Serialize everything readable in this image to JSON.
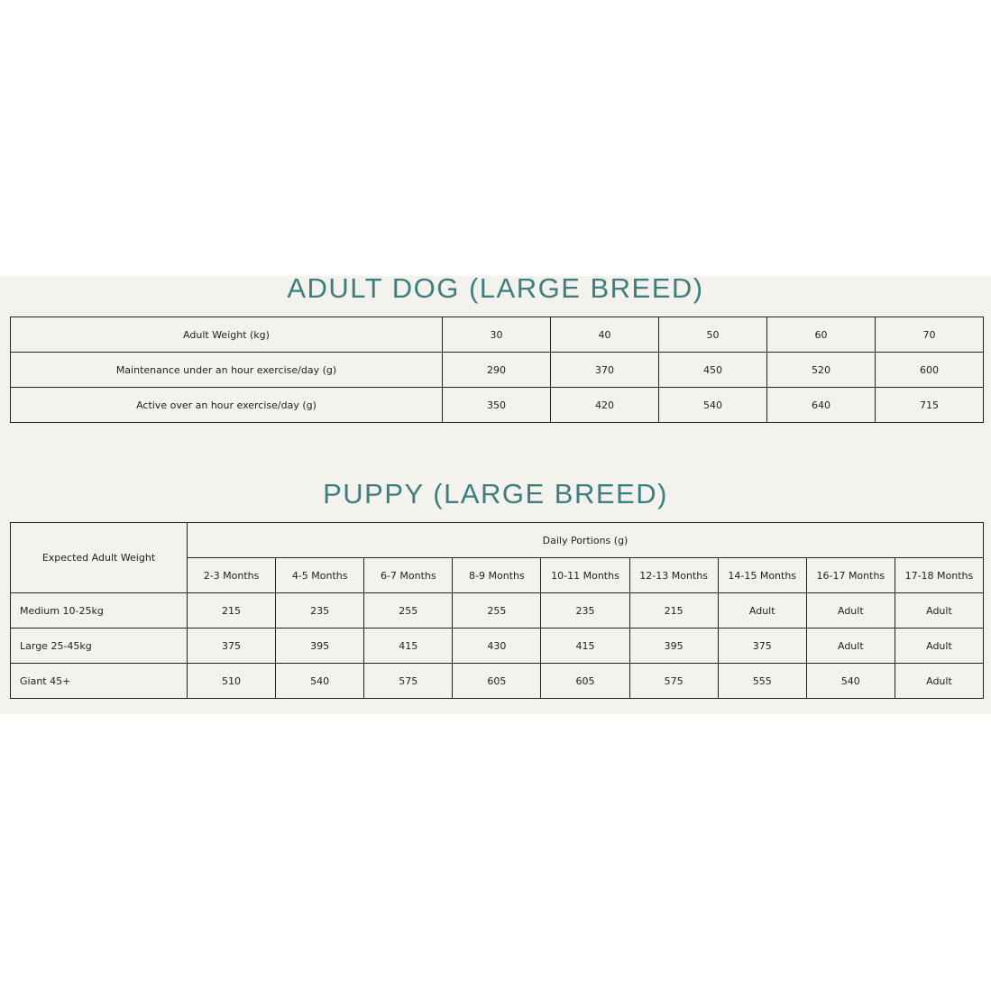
{
  "adult": {
    "title": "ADULT DOG (LARGE BREED)",
    "rows": [
      {
        "label": "Adult Weight (kg)",
        "values": [
          "30",
          "40",
          "50",
          "60",
          "70"
        ]
      },
      {
        "label": "Maintenance under an hour exercise/day (g)",
        "values": [
          "290",
          "370",
          "450",
          "520",
          "600"
        ]
      },
      {
        "label": "Active over an hour exercise/day (g)",
        "values": [
          "350",
          "420",
          "540",
          "640",
          "715"
        ]
      }
    ]
  },
  "puppy": {
    "title": "PUPPY (LARGE BREED)",
    "row_header": "Expected Adult Weight",
    "group_header": "Daily Portions (g)",
    "columns": [
      "2-3 Months",
      "4-5 Months",
      "6-7 Months",
      "8-9 Months",
      "10-11 Months",
      "12-13 Months",
      "14-15 Months",
      "16-17 Months",
      "17-18 Months"
    ],
    "rows": [
      {
        "label": "Medium 10-25kg",
        "values": [
          "215",
          "235",
          "255",
          "255",
          "235",
          "215",
          "Adult",
          "Adult",
          "Adult"
        ]
      },
      {
        "label": "Large 25-45kg",
        "values": [
          "375",
          "395",
          "415",
          "430",
          "415",
          "395",
          "375",
          "Adult",
          "Adult"
        ]
      },
      {
        "label": "Giant 45+",
        "values": [
          "510",
          "540",
          "575",
          "605",
          "605",
          "575",
          "555",
          "540",
          "Adult"
        ]
      }
    ]
  }
}
